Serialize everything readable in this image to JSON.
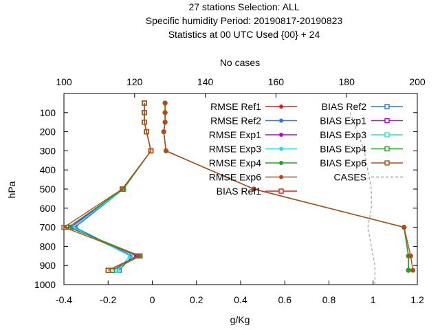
{
  "chart_data": {
    "type": "line",
    "title": [
      "27 stations Selection: ALL",
      "Specific humidity  Period: 20190817-20190823",
      "Statistics at 00 UTC  Used {00} + 24"
    ],
    "xlabel": "g/Kg",
    "ylabel": "hPa",
    "x2label": "No cases",
    "xlim": [
      -0.4,
      1.2
    ],
    "ylim": [
      1000,
      0
    ],
    "x2lim": [
      100,
      200
    ],
    "x_ticks": [
      "-0.4",
      "-0.2",
      "0",
      "0.2",
      "0.4",
      "0.6",
      "0.8",
      "1",
      "1.2"
    ],
    "y_ticks": [
      "100",
      "200",
      "300",
      "400",
      "500",
      "600",
      "700",
      "800",
      "900",
      "1000"
    ],
    "x2_ticks": [
      "100",
      "120",
      "140",
      "160",
      "180",
      "200"
    ],
    "grid": false,
    "legend_placement": "top-right",
    "levels": [
      50,
      100,
      150,
      200,
      300,
      500,
      700,
      850,
      925
    ],
    "series": [
      {
        "name": "RMSE Ref1",
        "color": "#e41a1c",
        "marker": "circle-filled",
        "kind": "rmse",
        "values": [
          0.058,
          0.058,
          0.058,
          0.052,
          0.062,
          0.46,
          1.14,
          1.16,
          1.16
        ]
      },
      {
        "name": "RMSE Ref2",
        "color": "#1f78e4",
        "marker": "circle-filled",
        "kind": "rmse",
        "values": [
          0.058,
          0.058,
          0.058,
          0.052,
          0.062,
          0.46,
          1.14,
          1.16,
          1.16
        ]
      },
      {
        "name": "RMSE Exp1",
        "color": "#c000e0",
        "marker": "circle-filled",
        "kind": "rmse",
        "values": [
          0.058,
          0.058,
          0.058,
          0.052,
          0.062,
          0.46,
          1.14,
          1.16,
          1.16
        ]
      },
      {
        "name": "RMSE Exp3",
        "color": "#22e0e0",
        "marker": "circle-filled",
        "kind": "rmse",
        "values": [
          0.058,
          0.058,
          0.058,
          0.052,
          0.062,
          0.46,
          1.14,
          1.16,
          1.16
        ]
      },
      {
        "name": "RMSE Exp4",
        "color": "#1ca51c",
        "marker": "circle-filled",
        "kind": "rmse",
        "values": [
          0.058,
          0.058,
          0.058,
          0.052,
          0.062,
          0.46,
          1.14,
          1.16,
          1.16
        ]
      },
      {
        "name": "RMSE Exp6",
        "color": "#b84a10",
        "marker": "circle-filled",
        "kind": "rmse",
        "values": [
          0.058,
          0.058,
          0.058,
          0.052,
          0.062,
          0.46,
          1.14,
          1.17,
          1.18
        ]
      },
      {
        "name": "BIAS Ref1",
        "color": "#e41a1c",
        "marker": "square-open",
        "kind": "bias",
        "values": [
          -0.036,
          -0.036,
          -0.036,
          -0.026,
          -0.006,
          -0.136,
          -0.37,
          -0.065,
          -0.2
        ]
      },
      {
        "name": "BIAS Ref2",
        "color": "#1f78e4",
        "marker": "square-open",
        "kind": "bias",
        "values": [
          -0.036,
          -0.036,
          -0.036,
          -0.026,
          -0.006,
          -0.13,
          -0.35,
          -0.09,
          -0.15
        ]
      },
      {
        "name": "BIAS Exp1",
        "color": "#c000e0",
        "marker": "square-open",
        "kind": "bias",
        "values": [
          -0.036,
          -0.036,
          -0.036,
          -0.026,
          -0.006,
          -0.134,
          -0.37,
          -0.07,
          -0.18
        ]
      },
      {
        "name": "BIAS Exp3",
        "color": "#22e0e0",
        "marker": "square-open",
        "kind": "bias",
        "values": [
          -0.036,
          -0.036,
          -0.036,
          -0.026,
          -0.006,
          -0.13,
          -0.36,
          -0.1,
          -0.16
        ]
      },
      {
        "name": "BIAS Exp4",
        "color": "#1ca51c",
        "marker": "square-open",
        "kind": "bias",
        "values": [
          -0.036,
          -0.036,
          -0.036,
          -0.026,
          -0.006,
          -0.132,
          -0.38,
          -0.055,
          -0.18
        ]
      },
      {
        "name": "BIAS Exp6",
        "color": "#b84a10",
        "marker": "square-open",
        "kind": "bias",
        "values": [
          -0.036,
          -0.036,
          -0.036,
          -0.026,
          -0.006,
          -0.136,
          -0.4,
          -0.06,
          -0.2
        ]
      }
    ],
    "cases": {
      "name": "CASES",
      "color": "#a0a0a0",
      "levels": [
        100,
        200,
        300,
        400,
        500,
        600,
        700,
        800,
        900,
        925,
        1000
      ],
      "values": [
        181,
        183,
        185,
        186,
        187,
        187,
        186,
        187,
        188,
        188,
        188
      ]
    }
  }
}
